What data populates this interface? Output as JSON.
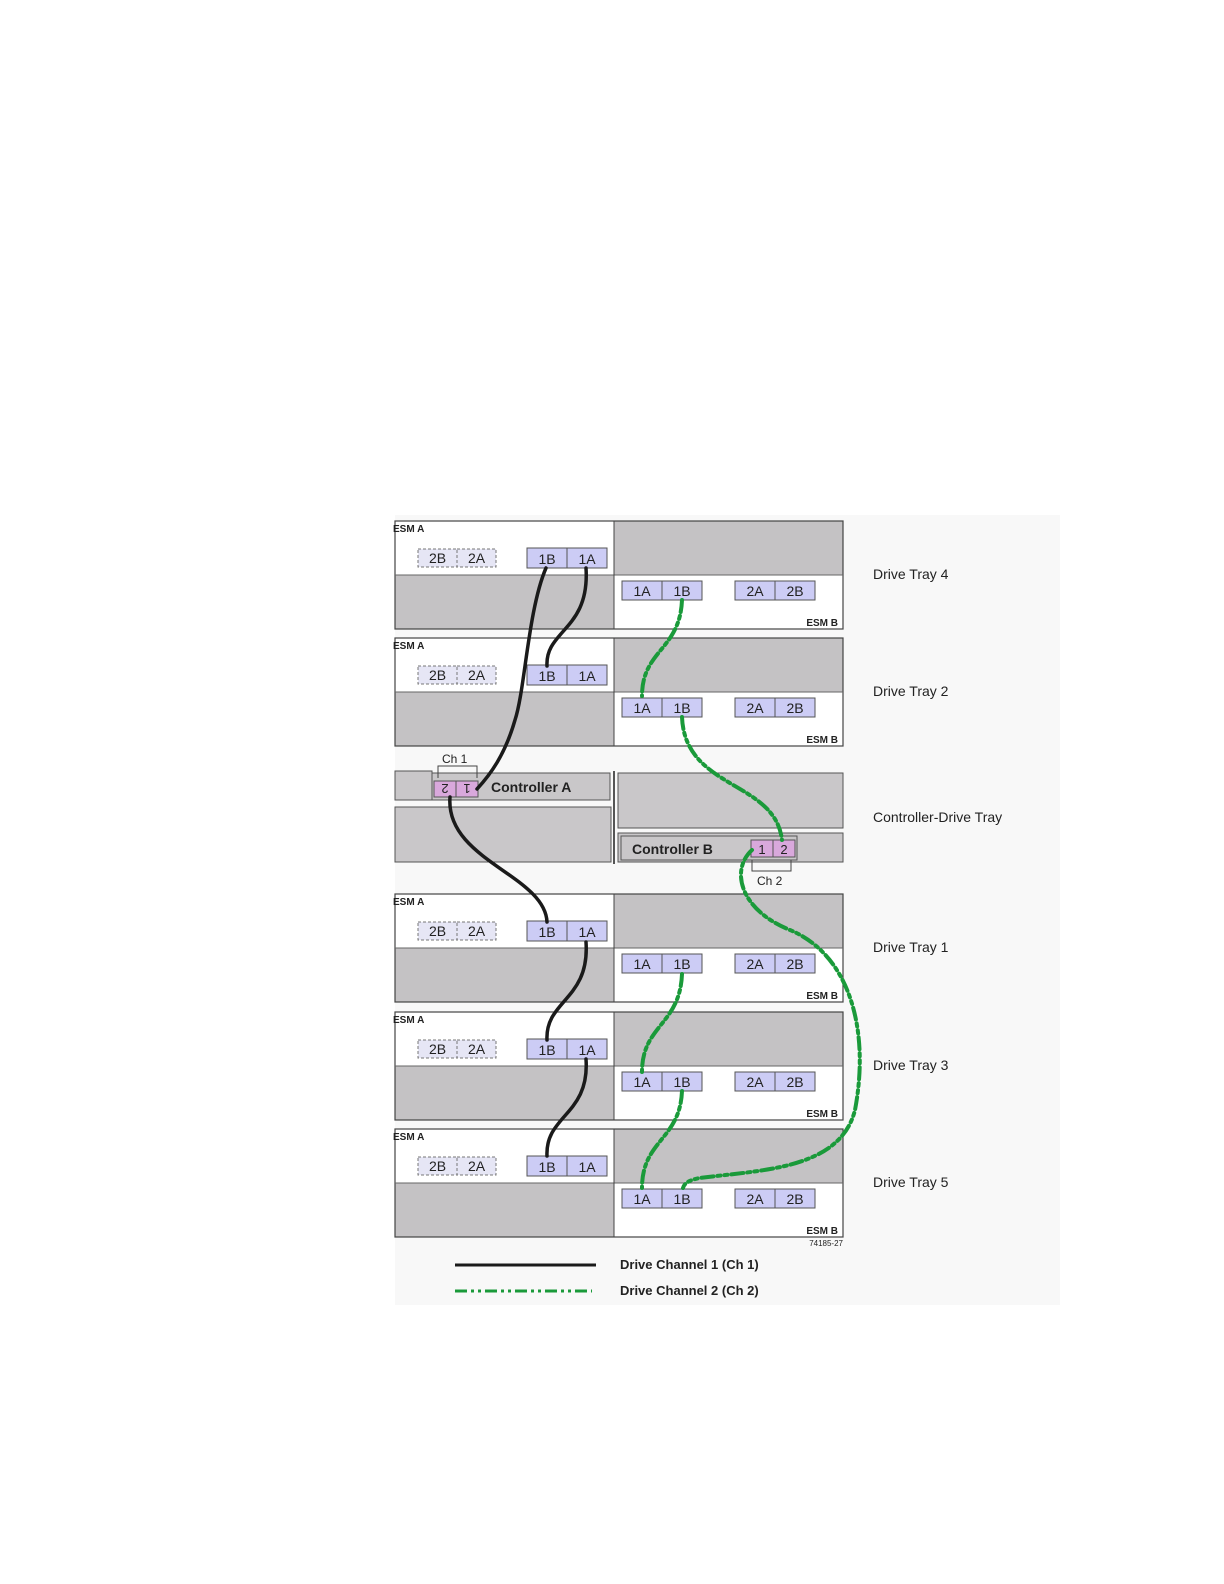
{
  "trays": [
    {
      "label": "Drive Tray 4"
    },
    {
      "label": "Drive Tray 2"
    },
    {
      "label": "Drive Tray 1"
    },
    {
      "label": "Drive Tray 3"
    },
    {
      "label": "Drive Tray 5"
    }
  ],
  "controller_tray": {
    "label": "Controller-Drive Tray",
    "controller_a": "Controller A",
    "controller_b": "Controller B",
    "ch1_label": "Ch 1",
    "ch2_label": "Ch 2",
    "ports_a": [
      "2",
      "1"
    ],
    "ports_b": [
      "1",
      "2"
    ]
  },
  "esm": {
    "esm_a_label": "ESM A",
    "esm_b_label": "ESM B",
    "esm_a_unused_ports": [
      "2B",
      "2A"
    ],
    "esm_a_ports": [
      "1B",
      "1A"
    ],
    "esm_b_ports": [
      "1A",
      "1B"
    ],
    "esm_b_unused_ports": [
      "2A",
      "2B"
    ]
  },
  "figure_id": "74185-27",
  "legend": [
    {
      "label": "Drive Channel 1 (Ch 1)",
      "style": "solid",
      "color": "#1a1a1a"
    },
    {
      "label": "Drive Channel 2 (Ch 2)",
      "style": "dash-dot-dot",
      "color": "#1a9a3a"
    }
  ],
  "colors": {
    "port_fill": "#ccccf5",
    "controller_port_fill": "#d9a8dc",
    "panel_gray": "#c4c2c4"
  }
}
